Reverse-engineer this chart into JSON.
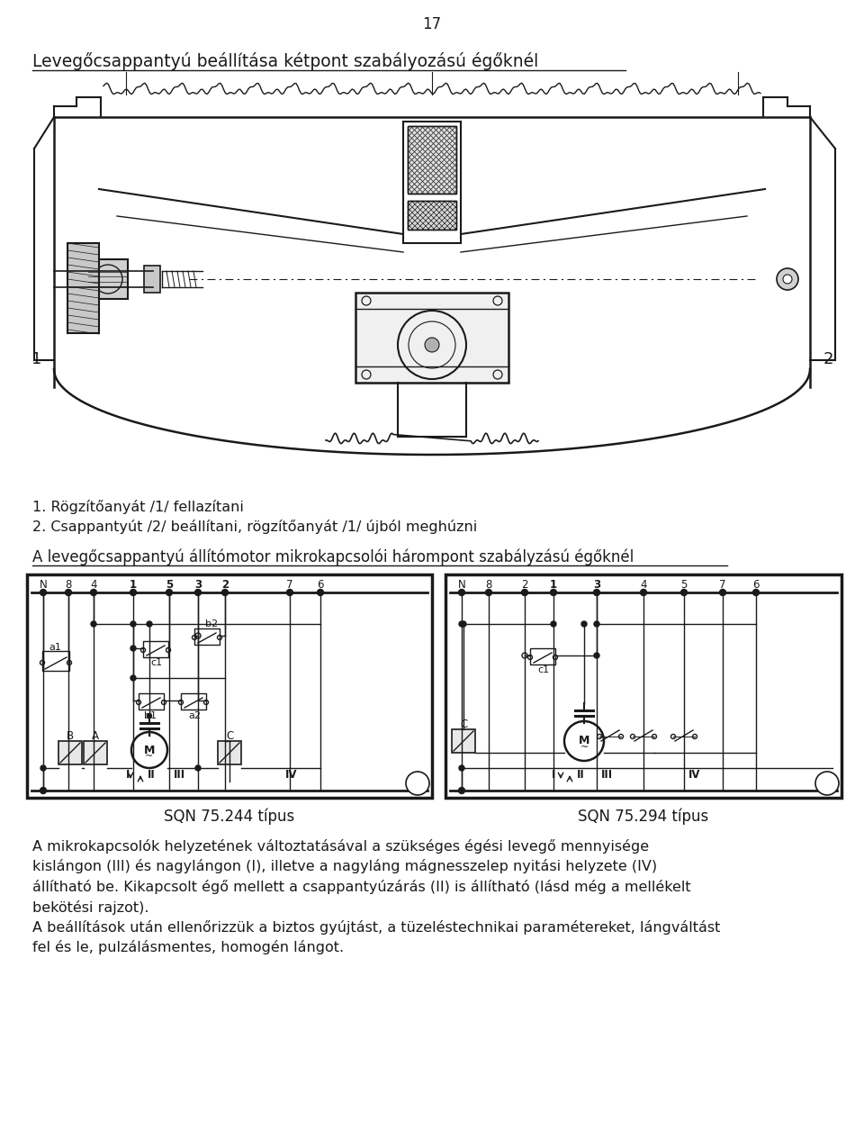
{
  "page_number": "17",
  "title1": "Levegőcsappantyú beállítása kétpont szabályozású égőknél",
  "list_item1": "1. Rögzítőanyát /1/ fellazítani",
  "list_item2": "2. Csappantyút /2/ beállítani, rögzítőanyát /1/ újból meghúzni",
  "title2": "A levegőcsappantyú állítómotor mikrokapcsolói hárompont szabályzású égőknél",
  "diag1_label": "SQN 75.244 típus",
  "diag2_label": "SQN 75.294 típus",
  "body": [
    "A mikrokapcsolók helyzetének változtatásával a szükséges égési levegő mennyisége",
    "kislángon (III) és nagylángon (I), illetve a nagyláng mágnesszelep nyitási helyzete (IV)",
    "állítható be. Kikapcsolt égő mellett a csappantyúzárás (II) is állítható (lásd még a mellékelt",
    "bekötési rajzot).",
    "A beállítások után ellenőrizzük a biztos gyújtást, a tüzeléstechnikai paramétereket, lángváltást",
    "fel és le, pulzálásmentes, homogén lángot."
  ],
  "tc": "#1a1a1a",
  "bg": "#ffffff"
}
